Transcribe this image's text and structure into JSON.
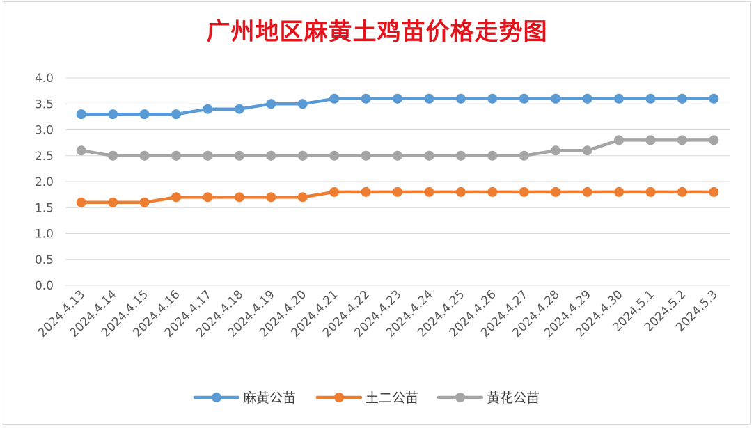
{
  "chart_data": {
    "type": "line",
    "title": "广州地区麻黄土鸡苗价格走势图",
    "xlabel": "",
    "ylabel": "",
    "categories": [
      "2024.4.13",
      "2024.4.14",
      "2024.4.15",
      "2024.4.16",
      "2024.4.17",
      "2024.4.18",
      "2024.4.19",
      "2024.4.20",
      "2024.4.21",
      "2024.4.22",
      "2024.4.23",
      "2024.4.24",
      "2024.4.25",
      "2024.4.26",
      "2024.4.27",
      "2024.4.28",
      "2024.4.29",
      "2024.4.30",
      "2024.5.1",
      "2024.5.2",
      "2024.5.3"
    ],
    "ylim": [
      0,
      4
    ],
    "yticks": [
      "0.0",
      "0.5",
      "1.0",
      "1.5",
      "2.0",
      "2.5",
      "3.0",
      "3.5",
      "4.0"
    ],
    "grid": true,
    "legend_position": "bottom",
    "series": [
      {
        "name": "麻黄公苗",
        "color": "#5b9bd5",
        "values": [
          3.3,
          3.3,
          3.3,
          3.3,
          3.4,
          3.4,
          3.5,
          3.5,
          3.6,
          3.6,
          3.6,
          3.6,
          3.6,
          3.6,
          3.6,
          3.6,
          3.6,
          3.6,
          3.6,
          3.6,
          3.6
        ]
      },
      {
        "name": "土二公苗",
        "color": "#ed7d31",
        "values": [
          1.6,
          1.6,
          1.6,
          1.7,
          1.7,
          1.7,
          1.7,
          1.7,
          1.8,
          1.8,
          1.8,
          1.8,
          1.8,
          1.8,
          1.8,
          1.8,
          1.8,
          1.8,
          1.8,
          1.8,
          1.8
        ]
      },
      {
        "name": "黄花公苗",
        "color": "#a5a5a5",
        "values": [
          2.6,
          2.5,
          2.5,
          2.5,
          2.5,
          2.5,
          2.5,
          2.5,
          2.5,
          2.5,
          2.5,
          2.5,
          2.5,
          2.5,
          2.5,
          2.6,
          2.6,
          2.8,
          2.8,
          2.8,
          2.8
        ]
      }
    ]
  }
}
